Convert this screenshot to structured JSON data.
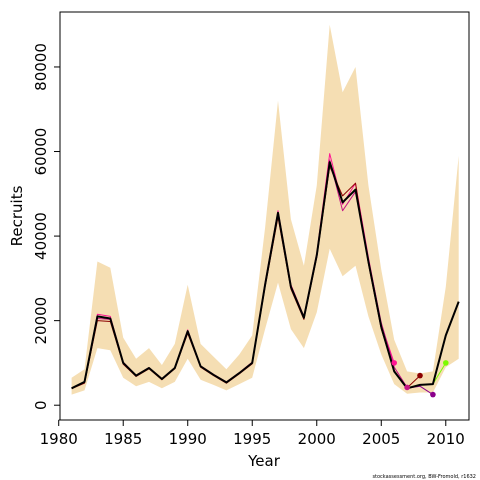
{
  "chart_data": {
    "type": "line",
    "title": "",
    "xlabel": "Year",
    "ylabel": "Recruits",
    "credit": "stockassessment.org, BW-Fromold, r1632",
    "xlim": [
      1980.1,
      2011.8
    ],
    "ylim": [
      -3500,
      93000
    ],
    "x_ticks": [
      1980,
      1985,
      1990,
      1995,
      2000,
      2005,
      2010
    ],
    "y_ticks": [
      0,
      20000,
      40000,
      60000,
      80000
    ],
    "colors": {
      "band": "#f5deb3",
      "main": "#000000",
      "retro": [
        "#ff1493",
        "#c71585",
        "#8b0000",
        "#8b008b",
        "#7cfc00",
        "#8a2be2",
        "#ff69b4"
      ]
    },
    "confidence_band": {
      "x": [
        1981,
        1982,
        1983,
        1984,
        1985,
        1986,
        1987,
        1988,
        1989,
        1990,
        1991,
        1992,
        1993,
        1994,
        1995,
        1996,
        1997,
        1998,
        1999,
        2000,
        2001,
        2002,
        2003,
        2004,
        2005,
        2006,
        2007,
        2008,
        2009,
        2010,
        2011
      ],
      "lower": [
        2500,
        3500,
        13500,
        13000,
        6500,
        4500,
        5500,
        4000,
        5500,
        11000,
        6000,
        4800,
        3500,
        5000,
        6500,
        18000,
        29000,
        18000,
        13500,
        22000,
        37000,
        30500,
        33000,
        21000,
        12000,
        5000,
        2700,
        3000,
        3000,
        9000,
        11000
      ],
      "upper": [
        6500,
        8500,
        34000,
        32500,
        16000,
        11000,
        13500,
        9500,
        14500,
        28500,
        14500,
        11500,
        8500,
        12000,
        16500,
        42000,
        72000,
        44000,
        33000,
        52000,
        90000,
        74000,
        80000,
        52000,
        32000,
        15500,
        8000,
        7500,
        8000,
        28000,
        59000
      ]
    },
    "series": [
      {
        "x": [
          1981,
          1982,
          1983,
          1984,
          1985,
          1986,
          1987,
          1988,
          1989,
          1990,
          1991,
          1992,
          1993,
          1994,
          1995,
          1996,
          1997,
          1998,
          1999,
          2000,
          2001,
          2002,
          2003,
          2004,
          2005,
          2006,
          2007,
          2008,
          2009,
          2010,
          2011
        ],
        "values": [
          4000,
          5500,
          21000,
          20500,
          10000,
          7000,
          8800,
          6200,
          8800,
          17500,
          9200,
          7200,
          5400,
          7600,
          10000,
          28500,
          45500,
          28000,
          20700,
          35500,
          57500,
          48000,
          51000,
          34000,
          18500,
          8000,
          4000,
          4800,
          5000,
          16500,
          24500
        ]
      },
      {
        "x": [
          1981,
          1982,
          1983,
          1984,
          1985,
          1986,
          1987,
          1988,
          1989,
          1990,
          1991,
          1992,
          1993,
          1994,
          1995,
          1996,
          1997,
          1998,
          1999,
          2000,
          2001,
          2002,
          2003,
          2004,
          2005,
          2006
        ],
        "values": [
          4000,
          5400,
          21500,
          21000,
          10200,
          7100,
          8900,
          6300,
          8900,
          17800,
          9300,
          7300,
          5500,
          7700,
          10200,
          29000,
          46000,
          28500,
          21000,
          36000,
          59500,
          47500,
          52500,
          35000,
          19000,
          10000
        ]
      },
      {
        "x": [
          1981,
          1982,
          1983,
          1984,
          1985,
          1986,
          1987,
          1988,
          1989,
          1990,
          1991,
          1992,
          1993,
          1994,
          1995,
          1996,
          1997,
          1998,
          1999,
          2000,
          2001,
          2002,
          2003,
          2004,
          2005,
          2006,
          2007
        ],
        "values": [
          4000,
          5300,
          20500,
          20300,
          9800,
          6900,
          8700,
          6100,
          8700,
          17300,
          9100,
          7100,
          5300,
          7500,
          9900,
          28200,
          45000,
          27800,
          20500,
          35200,
          58000,
          46000,
          50500,
          34500,
          19500,
          9000,
          4200
        ]
      },
      {
        "x": [
          1981,
          1982,
          1983,
          1984,
          1985,
          1986,
          1987,
          1988,
          1989,
          1990,
          1991,
          1992,
          1993,
          1994,
          1995,
          1996,
          1997,
          1998,
          1999,
          2000,
          2001,
          2002,
          2003,
          2004,
          2005,
          2006,
          2007,
          2008
        ],
        "values": [
          3900,
          5200,
          20000,
          19800,
          9700,
          6800,
          8600,
          6000,
          8600,
          17000,
          9000,
          7000,
          5200,
          7400,
          9800,
          28000,
          44500,
          27500,
          20300,
          35000,
          56500,
          49500,
          52500,
          33500,
          18000,
          8200,
          4100,
          7000
        ]
      },
      {
        "x": [
          1981,
          1982,
          1983,
          1984,
          1985,
          1986,
          1987,
          1988,
          1989,
          1990,
          1991,
          1992,
          1993,
          1994,
          1995,
          1996,
          1997,
          1998,
          1999,
          2000,
          2001,
          2002,
          2003,
          2004,
          2005,
          2006,
          2007,
          2008,
          2009
        ],
        "values": [
          4000,
          5500,
          21000,
          20500,
          10000,
          7000,
          8800,
          6200,
          8800,
          17500,
          9200,
          7200,
          5400,
          7600,
          10000,
          28500,
          45500,
          28000,
          20700,
          35500,
          57000,
          47800,
          51000,
          34000,
          18500,
          7900,
          4000,
          4500,
          2500
        ]
      },
      {
        "x": [
          1981,
          1982,
          1983,
          1984,
          1985,
          1986,
          1987,
          1988,
          1989,
          1990,
          1991,
          1992,
          1993,
          1994,
          1995,
          1996,
          1997,
          1998,
          1999,
          2000,
          2001,
          2002,
          2003,
          2004,
          2005,
          2006,
          2007,
          2008,
          2009,
          2010
        ],
        "values": [
          4000,
          5500,
          21000,
          20500,
          10000,
          7000,
          8800,
          6200,
          8800,
          17500,
          9200,
          7200,
          5400,
          7600,
          10000,
          28500,
          45500,
          28000,
          20700,
          35500,
          57200,
          48000,
          51000,
          34000,
          18500,
          8000,
          4000,
          4800,
          5000,
          10000
        ]
      }
    ]
  }
}
